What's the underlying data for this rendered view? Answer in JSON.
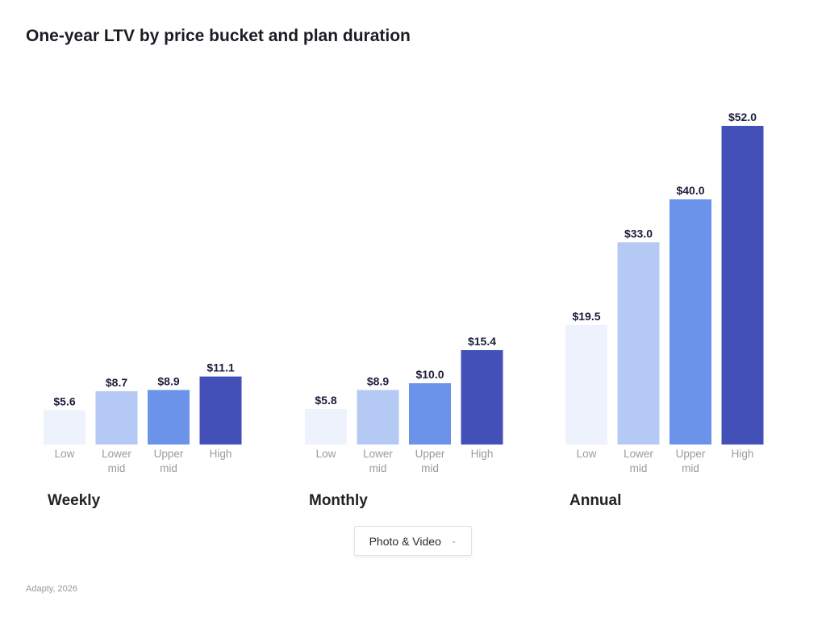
{
  "title": "One-year LTV by price bucket and plan duration",
  "chart_data": {
    "type": "bar",
    "title": "One-year LTV by price bucket and plan duration",
    "categories": [
      "Low",
      "Lower mid",
      "Upper mid",
      "High"
    ],
    "groups": [
      {
        "name": "Weekly",
        "values": [
          5.6,
          8.7,
          8.9,
          11.1
        ],
        "labels": [
          "$5.6",
          "$8.7",
          "$8.9",
          "$11.1"
        ]
      },
      {
        "name": "Monthly",
        "values": [
          5.8,
          8.9,
          10.0,
          15.4
        ],
        "labels": [
          "$5.8",
          "$8.9",
          "$10.0",
          "$15.4"
        ]
      },
      {
        "name": "Annual",
        "values": [
          19.5,
          33.0,
          40.0,
          52.0
        ],
        "labels": [
          "$19.5",
          "$33.0",
          "$40.0",
          "$52.0"
        ]
      }
    ],
    "colors": [
      "#edf2fc",
      "#b4c9f3",
      "#6b93ea",
      "#4250b8"
    ],
    "ylim": [
      0,
      52
    ],
    "grid": false,
    "legend": "none"
  },
  "filter": {
    "selected": "Photo & Video",
    "icon": "chevron-down-icon"
  },
  "footer": "Adapty, 2026"
}
